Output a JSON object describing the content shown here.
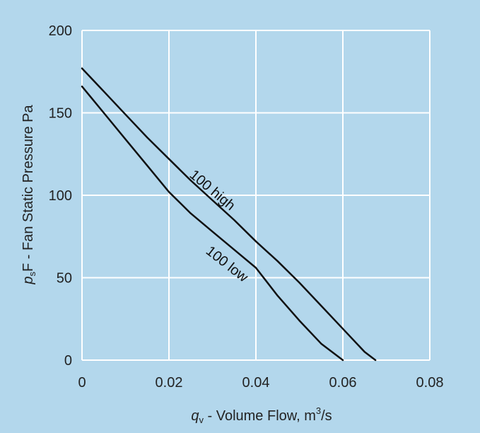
{
  "chart_data": {
    "type": "line",
    "xlabel": {
      "symbol": "q",
      "subscript": "v",
      "text": " - Volume Flow, m",
      "superscript": "3",
      "suffix": "/s"
    },
    "ylabel": {
      "symbol": "p",
      "subscript": "s",
      "text": "F - Fan Static Pressure  Pa"
    },
    "xlim": [
      0,
      0.08
    ],
    "ylim": [
      0,
      200
    ],
    "x_ticks": [
      "0",
      "0.02",
      "0.04",
      "0.06",
      "0.08"
    ],
    "y_ticks": [
      "0",
      "50",
      "100",
      "150",
      "200"
    ],
    "grid": true,
    "colors": {
      "background": "#b3d7ec",
      "grid": "#ffffff",
      "line": "#111111"
    },
    "series": [
      {
        "name": "100 high",
        "points": [
          [
            0,
            177
          ],
          [
            0.005,
            163
          ],
          [
            0.01,
            149
          ],
          [
            0.015,
            135
          ],
          [
            0.02,
            122
          ],
          [
            0.025,
            109
          ],
          [
            0.03,
            97
          ],
          [
            0.035,
            85
          ],
          [
            0.04,
            72
          ],
          [
            0.045,
            60
          ],
          [
            0.05,
            47
          ],
          [
            0.055,
            33
          ],
          [
            0.06,
            19
          ],
          [
            0.065,
            5
          ],
          [
            0.0675,
            0
          ]
        ]
      },
      {
        "name": "100 low",
        "points": [
          [
            0,
            166
          ],
          [
            0.005,
            150
          ],
          [
            0.01,
            134
          ],
          [
            0.015,
            118
          ],
          [
            0.02,
            102
          ],
          [
            0.025,
            89
          ],
          [
            0.03,
            78
          ],
          [
            0.035,
            67
          ],
          [
            0.04,
            56
          ],
          [
            0.045,
            39
          ],
          [
            0.05,
            24
          ],
          [
            0.055,
            10
          ],
          [
            0.06,
            0
          ]
        ]
      }
    ]
  }
}
